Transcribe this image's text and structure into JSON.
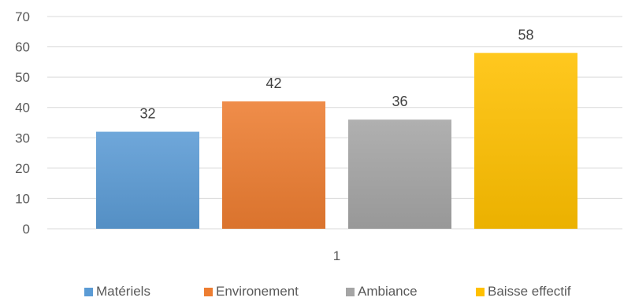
{
  "chart_data": {
    "type": "bar",
    "categories": [
      "1"
    ],
    "series": [
      {
        "name": "Matériels",
        "values": [
          32
        ],
        "color": "#5b9bd5"
      },
      {
        "name": "Environement",
        "values": [
          42
        ],
        "color": "#ed7d31"
      },
      {
        "name": "Ambiance",
        "values": [
          36
        ],
        "color": "#a5a5a5"
      },
      {
        "name": "Baisse effectif",
        "values": [
          58
        ],
        "color": "#ffc000"
      }
    ],
    "ylim": [
      0,
      70
    ],
    "yticks": [
      0,
      10,
      20,
      30,
      40,
      50,
      60,
      70
    ],
    "grid": true,
    "legend": "bottom",
    "data_labels": true
  }
}
